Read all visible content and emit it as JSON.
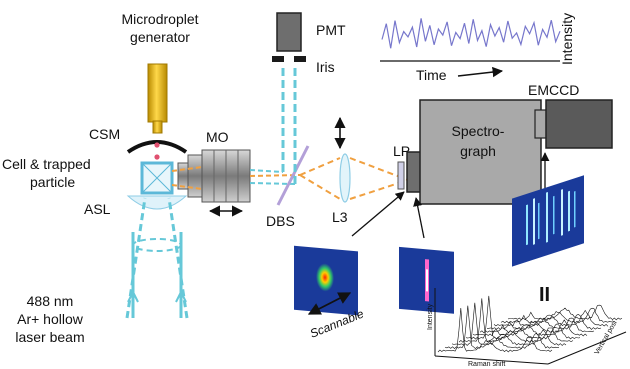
{
  "labels": {
    "generator_line1": "Microdroplet",
    "generator_line2": "generator",
    "pmt": "PMT",
    "iris": "Iris",
    "time": "Time",
    "intensity": "Intensity",
    "emccd": "EMCCD",
    "spectro_line1": "Spectro-",
    "spectro_line2": "graph",
    "lp": "LP",
    "csm": "CSM",
    "mo": "MO",
    "cell_line1": "Cell & trapped",
    "cell_line2": "particle",
    "asl": "ASL",
    "dbs": "DBS",
    "l3": "L3",
    "scannable": "Scannable",
    "laser_line1": "488 nm",
    "laser_line2": "Ar+ hollow",
    "laser_line3": "laser beam",
    "plot_intensity": "Intensity",
    "plot_raman_shift": "Raman shift",
    "plot_vertical_pos": "Vertical posi",
    "equals_sign": "II"
  },
  "colors": {
    "laser_blue": "#66c8d8",
    "beam_orange": "#f0a040",
    "generator_gold": "#e8b800",
    "device_gray": "#a9a9a9",
    "device_dark": "#5a5a5a",
    "trace_purple": "#7777cc",
    "image_navy": "#1a3a9a"
  },
  "pmt_trace": [
    0.42,
    0.78,
    0.22,
    0.85,
    0.35,
    0.6,
    0.48,
    0.7,
    0.25,
    0.9,
    0.38,
    0.74,
    0.3,
    0.66,
    0.52,
    0.82,
    0.28,
    0.58,
    0.44,
    0.79,
    0.33,
    0.88,
    0.4,
    0.62,
    0.26,
    0.76,
    0.5,
    0.69,
    0.36,
    0.84,
    0.45,
    0.57,
    0.31,
    0.72,
    0.55,
    0.8,
    0.29,
    0.65,
    0.47,
    0.86,
    0.37,
    0.61
  ]
}
